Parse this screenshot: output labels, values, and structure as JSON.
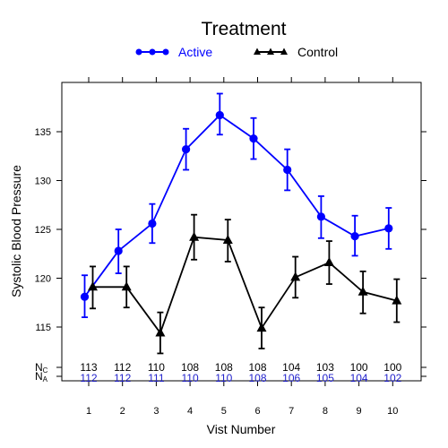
{
  "chart_data": {
    "type": "line",
    "title": "Treatment",
    "xlabel": "Vist Number",
    "ylabel": "Systolic Blood Pressure",
    "x": [
      1,
      2,
      3,
      4,
      5,
      6,
      7,
      8,
      9,
      10
    ],
    "xlim": [
      0.5,
      10.5
    ],
    "ylim": [
      111.3,
      140.0
    ],
    "yticks": [
      115,
      120,
      125,
      130,
      135
    ],
    "grid": false,
    "legend_position": "top",
    "series": [
      {
        "name": "Active",
        "color": "#0000ff",
        "marker": "circle",
        "values": [
          118.1,
          122.8,
          125.6,
          133.2,
          136.7,
          134.3,
          131.1,
          126.3,
          124.3,
          125.1
        ],
        "lower": [
          116.0,
          120.5,
          123.6,
          131.1,
          134.7,
          132.2,
          129.0,
          124.1,
          122.3,
          123.0
        ],
        "upper": [
          120.3,
          125.0,
          127.6,
          135.3,
          138.9,
          136.4,
          133.2,
          128.4,
          126.4,
          127.2
        ]
      },
      {
        "name": "Control",
        "color": "#000000",
        "marker": "triangle",
        "values": [
          119.1,
          119.1,
          114.4,
          124.2,
          123.9,
          114.9,
          120.1,
          121.6,
          118.6,
          117.7
        ],
        "lower": [
          116.9,
          117.0,
          112.3,
          121.9,
          121.7,
          112.8,
          118.0,
          119.4,
          116.4,
          115.5
        ],
        "upper": [
          121.2,
          121.2,
          116.5,
          126.5,
          126.0,
          117.0,
          122.2,
          123.8,
          120.7,
          119.9
        ]
      }
    ],
    "at_risk": {
      "control_label": "N",
      "control_subscript": "C",
      "active_label": "N",
      "active_subscript": "A",
      "control_counts": [
        "113",
        "112",
        "110",
        "108",
        "108",
        "108",
        "104",
        "103",
        "100",
        "100"
      ],
      "active_counts": [
        "112",
        "112",
        "111",
        "110",
        "110",
        "108",
        "106",
        "105",
        "104",
        "102"
      ]
    }
  }
}
